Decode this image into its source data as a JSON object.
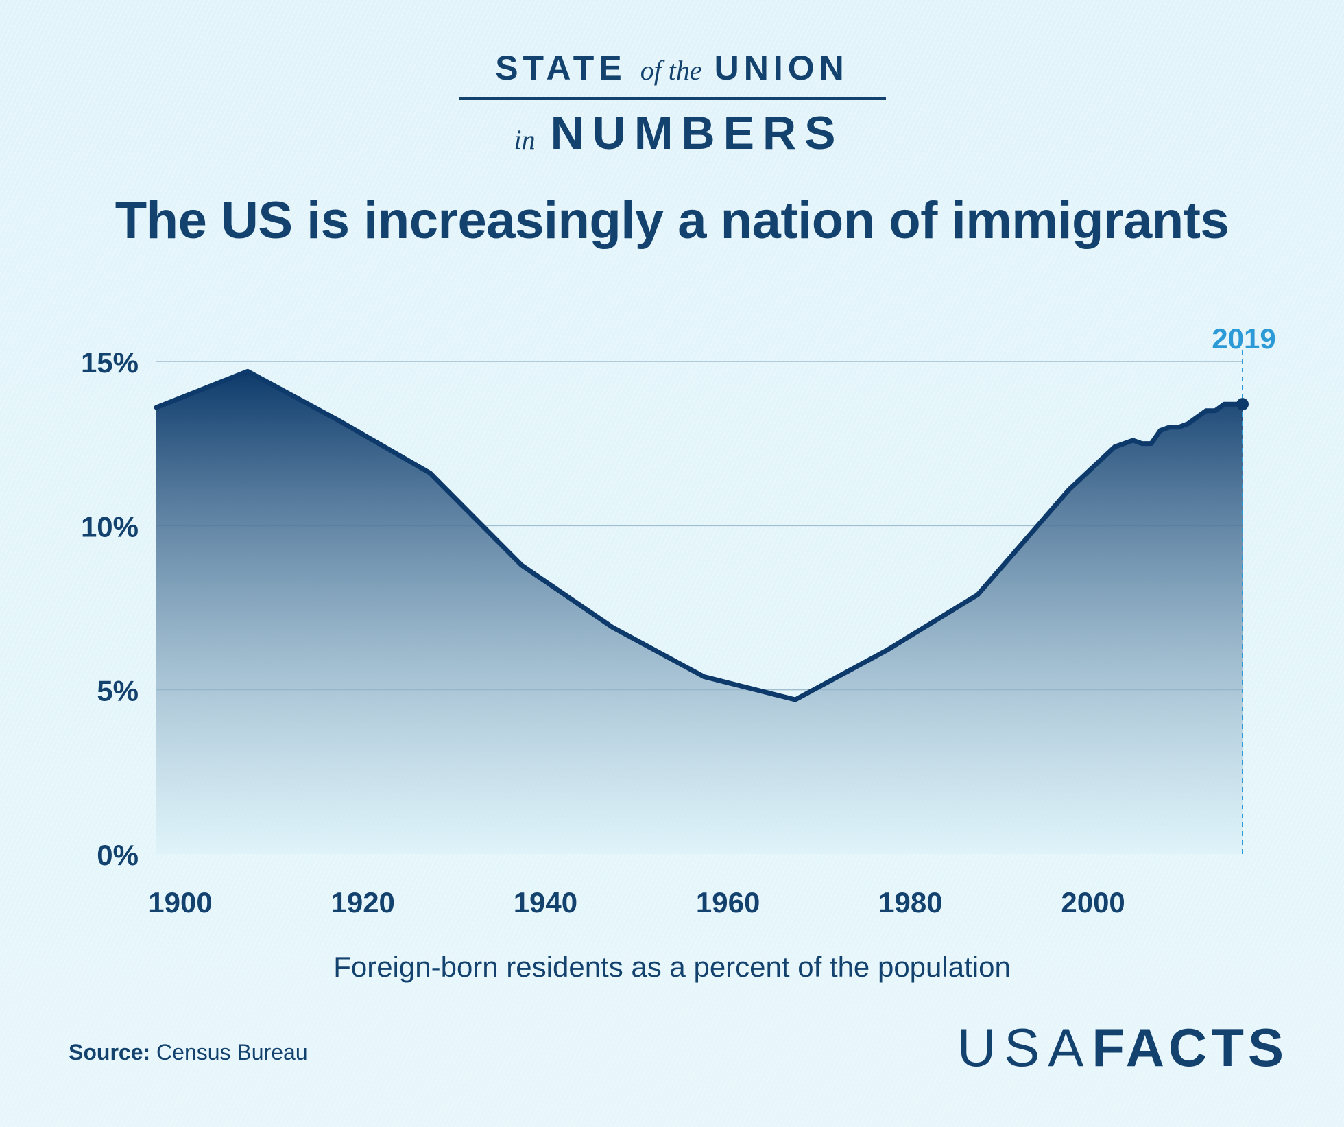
{
  "branding": {
    "state": "STATE",
    "of_the": "of the",
    "union": "UNION",
    "in": "in",
    "numbers": "NUMBERS"
  },
  "headline": "The US is increasingly a nation of immigrants",
  "caption": "Foreign-born residents as a percent of the population",
  "source": {
    "label": "Source:",
    "text": "Census Bureau"
  },
  "logo": {
    "thin": "USA",
    "bold": "FACTS"
  },
  "colors": {
    "line": "#0d3a6b",
    "area_top": "#0d3a6b",
    "area_bottom": "#d8f1f8",
    "highlight": "#2c9ad6",
    "grid": "#9fbfd1"
  },
  "chart_data": {
    "type": "area",
    "title": "",
    "xlabel": "",
    "ylabel": "",
    "ylim": [
      0,
      15
    ],
    "xlim": [
      1900,
      2019
    ],
    "y_ticks": [
      {
        "value": 0,
        "label": "0%"
      },
      {
        "value": 5,
        "label": "5%"
      },
      {
        "value": 10,
        "label": "10%"
      },
      {
        "value": 15,
        "label": "15%"
      }
    ],
    "x_ticks": [
      {
        "value": 1900,
        "label": "1900"
      },
      {
        "value": 1920,
        "label": "1920"
      },
      {
        "value": 1940,
        "label": "1940"
      },
      {
        "value": 1960,
        "label": "1960"
      },
      {
        "value": 1980,
        "label": "1980"
      },
      {
        "value": 2000,
        "label": "2000"
      }
    ],
    "grid": true,
    "highlight": {
      "x": 2019,
      "label": "2019"
    },
    "series": [
      {
        "points": [
          {
            "x": 1900,
            "y": 13.6
          },
          {
            "x": 1910,
            "y": 14.7
          },
          {
            "x": 1920,
            "y": 13.2
          },
          {
            "x": 1930,
            "y": 11.6
          },
          {
            "x": 1940,
            "y": 8.8
          },
          {
            "x": 1950,
            "y": 6.9
          },
          {
            "x": 1960,
            "y": 5.4
          },
          {
            "x": 1970,
            "y": 4.7
          },
          {
            "x": 1980,
            "y": 6.2
          },
          {
            "x": 1990,
            "y": 7.9
          },
          {
            "x": 2000,
            "y": 11.1
          },
          {
            "x": 2005,
            "y": 12.4
          },
          {
            "x": 2007,
            "y": 12.6
          },
          {
            "x": 2008,
            "y": 12.5
          },
          {
            "x": 2009,
            "y": 12.5
          },
          {
            "x": 2010,
            "y": 12.9
          },
          {
            "x": 2011,
            "y": 13.0
          },
          {
            "x": 2012,
            "y": 13.0
          },
          {
            "x": 2013,
            "y": 13.1
          },
          {
            "x": 2014,
            "y": 13.3
          },
          {
            "x": 2015,
            "y": 13.5
          },
          {
            "x": 2016,
            "y": 13.5
          },
          {
            "x": 2017,
            "y": 13.7
          },
          {
            "x": 2018,
            "y": 13.7
          },
          {
            "x": 2019,
            "y": 13.7
          }
        ]
      }
    ]
  }
}
